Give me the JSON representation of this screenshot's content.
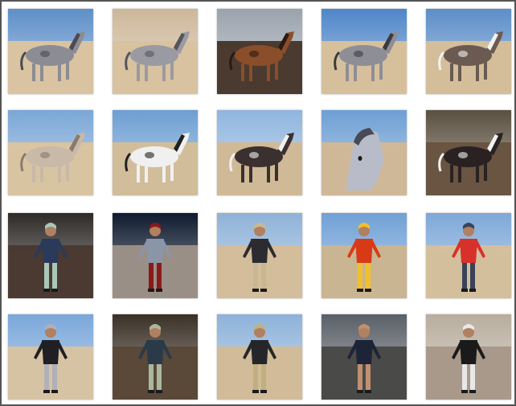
{
  "gallery": {
    "tiles": [
      {
        "icon": "horse-grey-appaloosa-beach-icon",
        "sky": "#5e8fc8",
        "ground": "#d9c3a1",
        "figure": "#8c8c94",
        "accent": "#4a4a52",
        "type": "horse"
      },
      {
        "icon": "horse-grey-appaloosa-closeup-icon",
        "sky": "#cdb79a",
        "ground": "#d8c2a0",
        "figure": "#9a9aa2",
        "accent": "#55555c",
        "type": "horse"
      },
      {
        "icon": "horse-bay-rocks-icon",
        "sky": "#9aa2ac",
        "ground": "#4a3a30",
        "figure": "#8a4e2a",
        "accent": "#2a1a12",
        "type": "horse"
      },
      {
        "icon": "horse-grey-appaloosa-grass-icon",
        "sky": "#4f86c9",
        "ground": "#d6c09c",
        "figure": "#8e8e96",
        "accent": "#3a3a40",
        "type": "horse"
      },
      {
        "icon": "horse-pinto-beach-icon",
        "sky": "#5c8ec8",
        "ground": "#d4be9a",
        "figure": "#6a5a52",
        "accent": "#f2f2f2",
        "type": "horse"
      },
      {
        "icon": "horse-palomino-beach-icon",
        "sky": "#7ba7d6",
        "ground": "#d9c4a2",
        "figure": "#c8b9a8",
        "accent": "#8a7a6a",
        "type": "horse"
      },
      {
        "icon": "horse-leopard-appaloosa-icon",
        "sky": "#6d9fd2",
        "ground": "#d2bd9b",
        "figure": "#f0f0f0",
        "accent": "#202020",
        "type": "horse"
      },
      {
        "icon": "horse-pinto-rearing-icon",
        "sky": "#8fb5df",
        "ground": "#d0b996",
        "figure": "#3a3030",
        "accent": "#f0f0f0",
        "type": "horse"
      },
      {
        "icon": "horse-grey-head-closeup-icon",
        "sky": "#6d9fd4",
        "ground": "#cfb898",
        "figure": "#b8bcc8",
        "accent": "#4a4a55",
        "type": "horse-head"
      },
      {
        "icon": "horse-pinto-forest-icon",
        "sky": "#5a5040",
        "ground": "#6a5442",
        "figure": "#2a2222",
        "accent": "#f2f2f2",
        "type": "horse"
      },
      {
        "icon": "man-plaid-shirt-icon",
        "sky": "#2e2a28",
        "ground": "#4a3a32",
        "figure": "#2a3a5a",
        "accent": "#a8c8b8",
        "type": "person"
      },
      {
        "icon": "woman-grey-dress-icon",
        "sky": "#0e1a2e",
        "ground": "#9a8f86",
        "figure": "#8a96a8",
        "accent": "#8a1a1a",
        "type": "person"
      },
      {
        "icon": "man-black-suit-beach-icon",
        "sky": "#8fb2d8",
        "ground": "#d3bd9a",
        "figure": "#2c2c30",
        "accent": "#c8b890",
        "type": "person"
      },
      {
        "icon": "woman-red-flame-dress-icon",
        "sky": "#6fa0d6",
        "ground": "#c9b592",
        "figure": "#d83a18",
        "accent": "#f0c030",
        "type": "person"
      },
      {
        "icon": "woman-red-top-beach-icon",
        "sky": "#7ea8d8",
        "ground": "#d4bf9c",
        "figure": "#d8302a",
        "accent": "#3a4258",
        "type": "person"
      },
      {
        "icon": "man-leather-jacket-beach-icon",
        "sky": "#7aa7da",
        "ground": "#d6c3a3",
        "figure": "#202024",
        "accent": "#b0b0b8",
        "type": "person"
      },
      {
        "icon": "woman-rocks-camo-icon",
        "sky": "#3a3026",
        "ground": "#5a4838",
        "figure": "#2a3a48",
        "accent": "#a8b8a0",
        "type": "person"
      },
      {
        "icon": "man-black-suit-grass-icon",
        "sky": "#8db2da",
        "ground": "#d1bb98",
        "figure": "#26262a",
        "accent": "#c0b080",
        "type": "person"
      },
      {
        "icon": "woman-navy-jacket-ruins-icon",
        "sky": "#5a6068",
        "ground": "#4a4a48",
        "figure": "#1e2438",
        "accent": "#c09070",
        "type": "person"
      },
      {
        "icon": "man-vest-sand-icon",
        "sky": "#b8ad9e",
        "ground": "#a8998a",
        "figure": "#1a1a1a",
        "accent": "#e8e8e8",
        "type": "person"
      }
    ]
  }
}
